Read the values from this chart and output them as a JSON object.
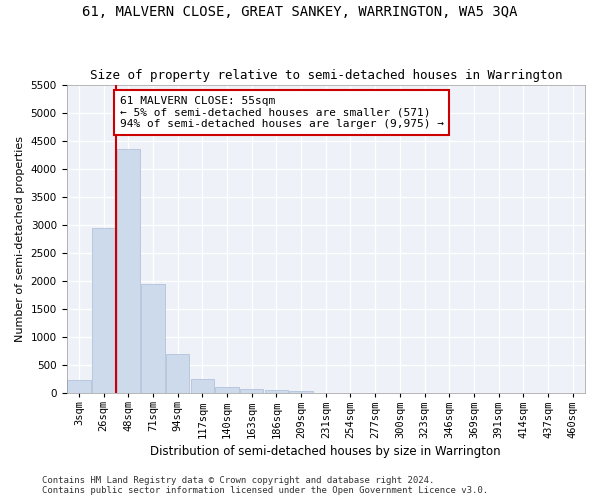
{
  "title1": "61, MALVERN CLOSE, GREAT SANKEY, WARRINGTON, WA5 3QA",
  "title2": "Size of property relative to semi-detached houses in Warrington",
  "xlabel": "Distribution of semi-detached houses by size in Warrington",
  "ylabel": "Number of semi-detached properties",
  "footer1": "Contains HM Land Registry data © Crown copyright and database right 2024.",
  "footer2": "Contains public sector information licensed under the Open Government Licence v3.0.",
  "categories": [
    "3sqm",
    "26sqm",
    "48sqm",
    "71sqm",
    "94sqm",
    "117sqm",
    "140sqm",
    "163sqm",
    "186sqm",
    "209sqm",
    "231sqm",
    "254sqm",
    "277sqm",
    "300sqm",
    "323sqm",
    "346sqm",
    "369sqm",
    "391sqm",
    "414sqm",
    "437sqm",
    "460sqm"
  ],
  "values": [
    230,
    2950,
    4350,
    1950,
    700,
    260,
    110,
    80,
    50,
    30,
    10,
    5,
    3,
    2,
    1,
    0,
    0,
    0,
    0,
    0,
    0
  ],
  "bar_color": "#ccdaeb",
  "bar_edge_color": "#aabcd8",
  "ylim": [
    0,
    5500
  ],
  "yticks": [
    0,
    500,
    1000,
    1500,
    2000,
    2500,
    3000,
    3500,
    4000,
    4500,
    5000,
    5500
  ],
  "vline_x": 1.5,
  "annotation_title": "61 MALVERN CLOSE: 55sqm",
  "annotation_line1": "← 5% of semi-detached houses are smaller (571)",
  "annotation_line2": "94% of semi-detached houses are larger (9,975) →",
  "annotation_box_color": "#ffffff",
  "annotation_box_edge_color": "#cc0000",
  "vline_color": "#cc0000",
  "title1_fontsize": 10,
  "title2_fontsize": 9,
  "xlabel_fontsize": 8.5,
  "ylabel_fontsize": 8,
  "tick_fontsize": 7.5,
  "annotation_fontsize": 8,
  "footer_fontsize": 6.5,
  "bg_color": "#eef2f8"
}
